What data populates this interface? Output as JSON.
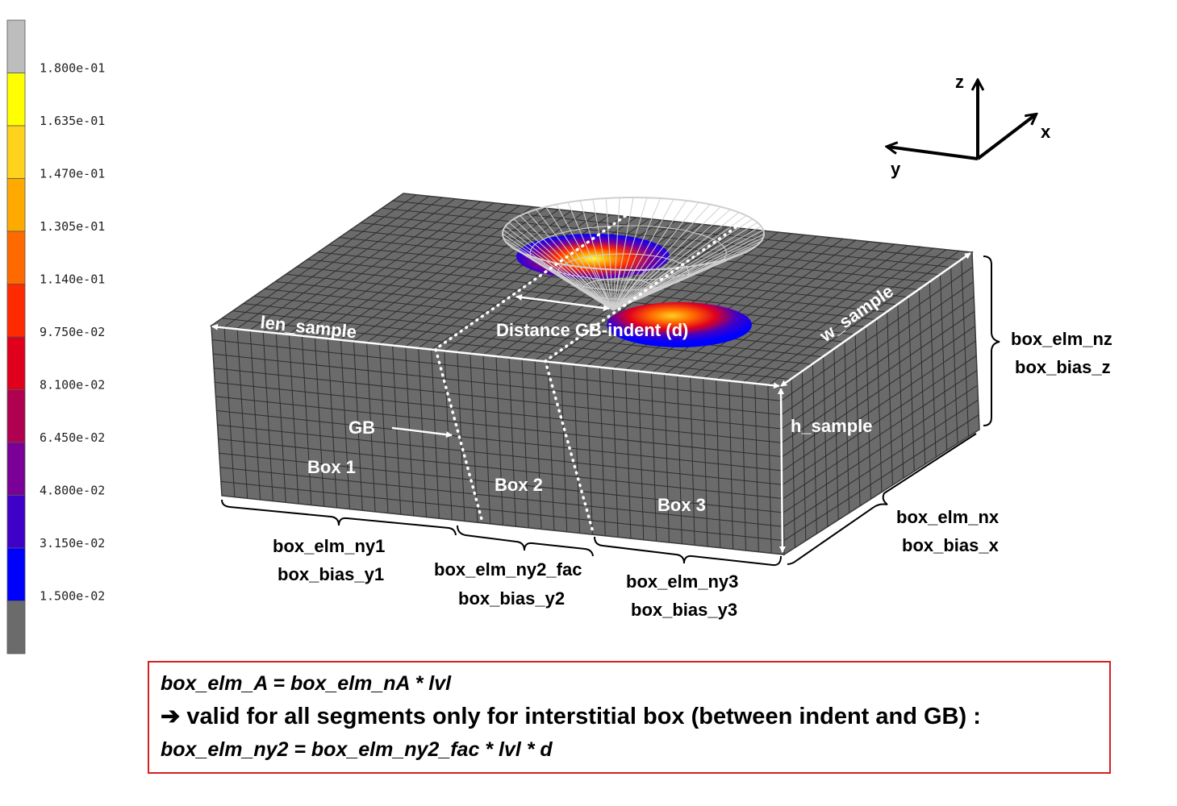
{
  "colorbar": {
    "colors": [
      "#bdbdbd",
      "#ffff00",
      "#ffd21e",
      "#ffaa00",
      "#ff6a00",
      "#ff2a00",
      "#e0001e",
      "#b00050",
      "#7a0098",
      "#3f00c8",
      "#0000ff",
      "#6b6b6b"
    ],
    "ticks": [
      "1.800e-01",
      "1.635e-01",
      "1.470e-01",
      "1.305e-01",
      "1.140e-01",
      "9.750e-02",
      "8.100e-02",
      "6.450e-02",
      "4.800e-02",
      "3.150e-02",
      "1.500e-02"
    ]
  },
  "axes": {
    "z": "z",
    "x": "x",
    "y": "y"
  },
  "labels": {
    "len_sample": "len_sample",
    "w_sample": "w_sample",
    "h_sample": "h_sample",
    "distance": "Distance  GB-indent (d)",
    "gb": "GB",
    "box1": "Box 1",
    "box2": "Box 2",
    "box3": "Box 3"
  },
  "dims": {
    "nz_line1": "box_elm_nz",
    "nz_line2": "box_bias_z",
    "nx_line1": "box_elm_nx",
    "nx_line2": "box_bias_x",
    "ny1_line1": "box_elm_ny1",
    "ny1_line2": "box_bias_y1",
    "ny2_line1": "box_elm_ny2_fac",
    "ny2_line2": "box_bias_y2",
    "ny3_line1": "box_elm_ny3",
    "ny3_line2": "box_bias_y3"
  },
  "formula": {
    "line1": "box_elm_A  = box_elm_nA  * lvl",
    "line2": "➔ valid for all segments only for interstitial box (between indent and GB) :",
    "line3": "box_elm_ny2  = box_elm_ny2_fac  * lvl * d"
  },
  "colors": {
    "mesh": "#6b6b6b",
    "frame": "#d42020"
  }
}
